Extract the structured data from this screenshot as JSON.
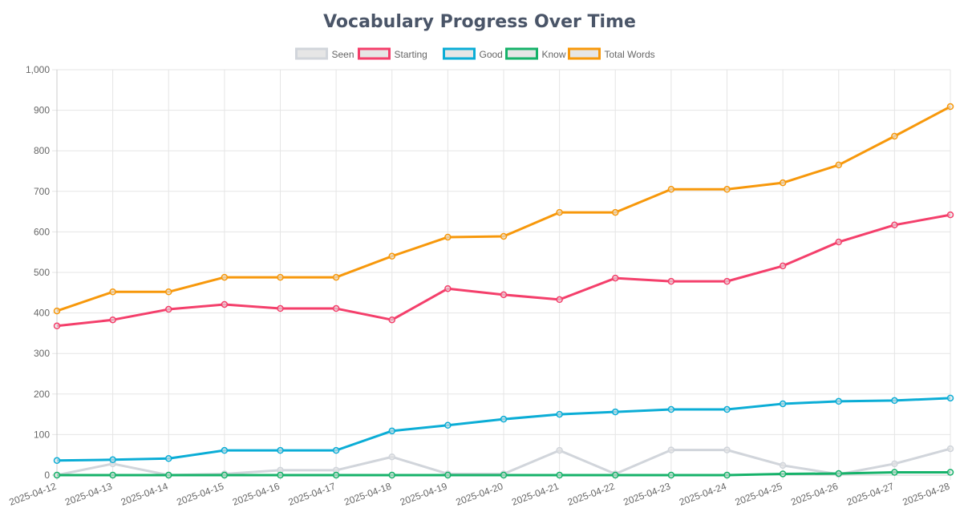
{
  "chart_data": {
    "type": "line",
    "title": "Vocabulary Progress Over Time",
    "xlabel": "",
    "ylabel": "",
    "ylim": [
      0,
      1000
    ],
    "yticks": [
      0,
      100,
      200,
      300,
      400,
      500,
      600,
      700,
      800,
      900,
      1000
    ],
    "ytick_labels": [
      "0",
      "100",
      "200",
      "300",
      "400",
      "500",
      "600",
      "700",
      "800",
      "900",
      "1,000"
    ],
    "grid": true,
    "legend_position": "top-center",
    "categories": [
      "2025-04-12",
      "2025-04-13",
      "2025-04-14",
      "2025-04-15",
      "2025-04-16",
      "2025-04-17",
      "2025-04-18",
      "2025-04-19",
      "2025-04-20",
      "2025-04-21",
      "2025-04-22",
      "2025-04-23",
      "2025-04-24",
      "2025-04-25",
      "2025-04-26",
      "2025-04-27",
      "2025-04-28"
    ],
    "series": [
      {
        "name": "Seen",
        "color": "#d1d5db",
        "values": [
          0,
          28,
          0,
          3,
          12,
          12,
          45,
          3,
          3,
          61,
          3,
          62,
          62,
          24,
          2,
          28,
          65
        ]
      },
      {
        "name": "Starting",
        "color": "#f43f6b",
        "values": [
          368,
          383,
          409,
          421,
          411,
          411,
          383,
          460,
          445,
          433,
          486,
          478,
          478,
          516,
          575,
          617,
          642
        ]
      },
      {
        "name": "Good",
        "color": "#0badd6",
        "values": [
          36,
          38,
          41,
          61,
          61,
          61,
          109,
          123,
          138,
          150,
          156,
          162,
          162,
          176,
          182,
          184,
          190
        ]
      },
      {
        "name": "Know",
        "color": "#16b26a",
        "values": [
          0,
          0,
          0,
          0,
          0,
          0,
          0,
          0,
          0,
          0,
          0,
          0,
          0,
          3,
          4,
          7,
          7
        ]
      },
      {
        "name": "Total Words",
        "color": "#f7980b",
        "values": [
          405,
          452,
          452,
          488,
          488,
          488,
          540,
          587,
          589,
          648,
          648,
          705,
          705,
          721,
          765,
          836,
          909
        ]
      }
    ]
  }
}
